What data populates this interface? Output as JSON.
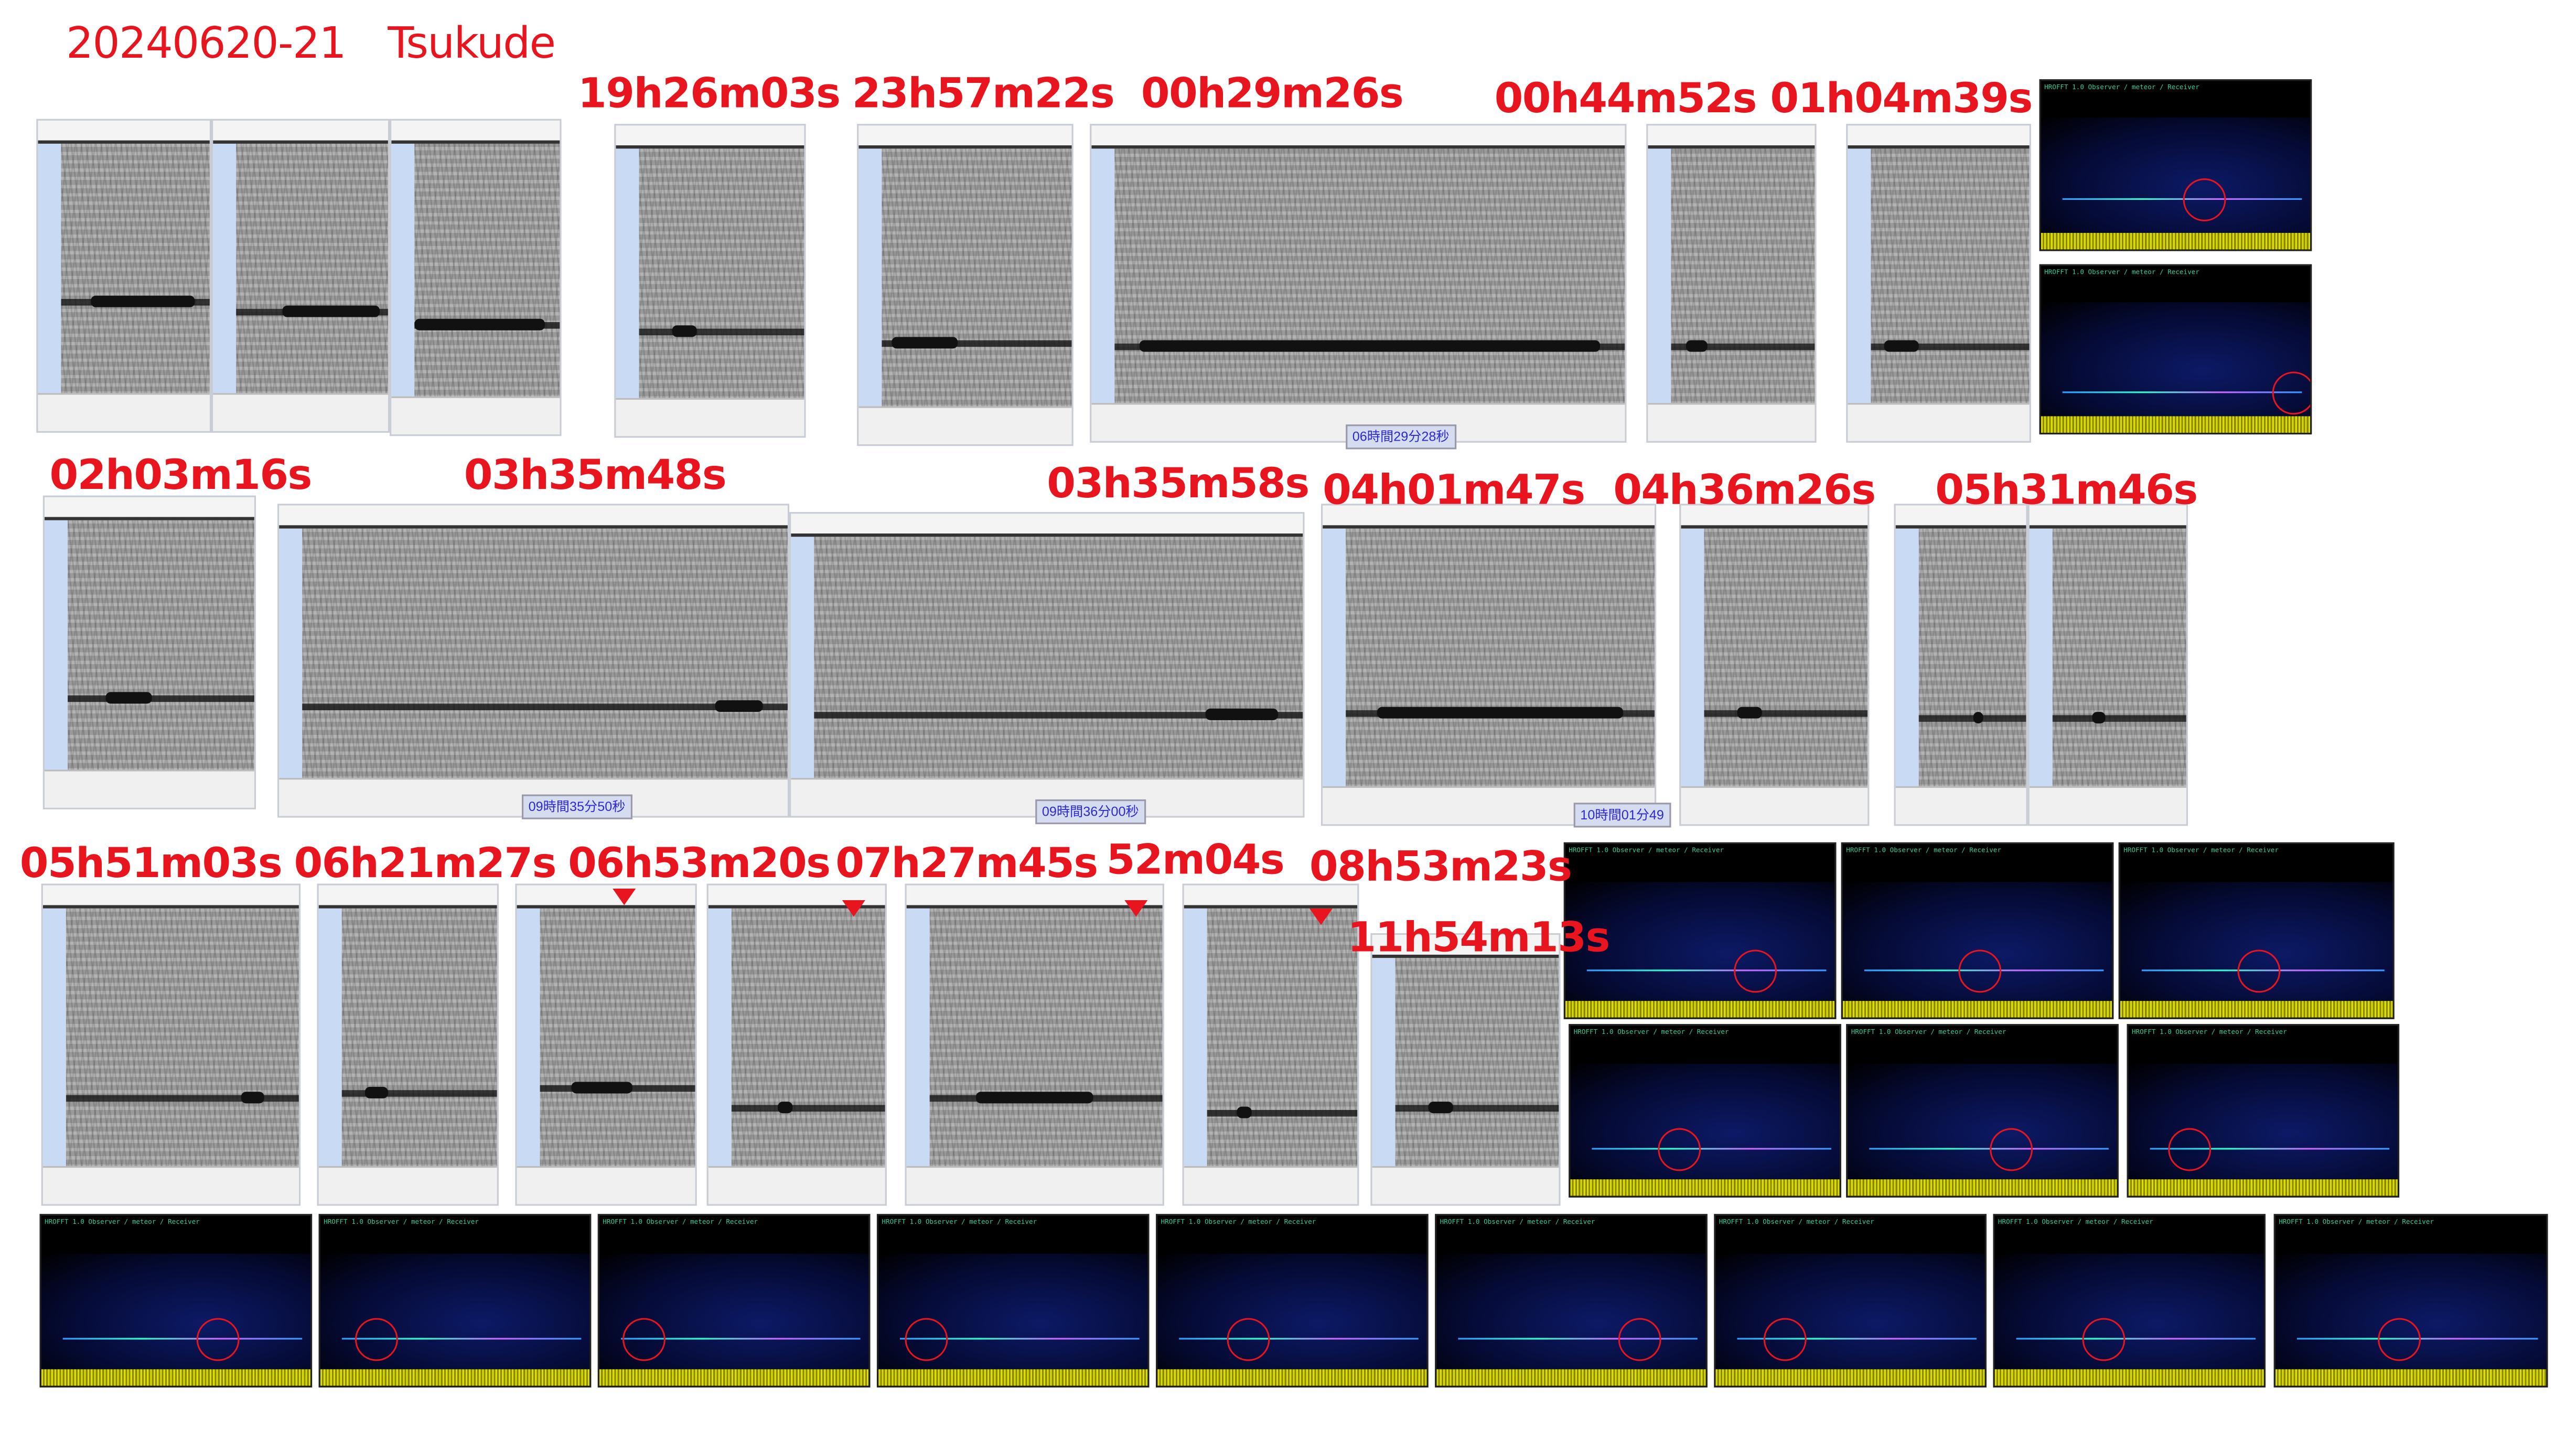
{
  "title": "20240620-21　Tsukude",
  "labels": [
    "19h26m03s",
    "23h57m22s",
    "00h29m26s",
    "00h44m52s",
    "01h04m39s",
    "02h03m16s",
    "03h35m48s",
    "03h35m58s",
    "04h01m47s",
    "04h36m26s",
    "05h31m46s",
    "05h51m03s",
    "06h21m27s",
    "06h53m20s",
    "07h27m45s",
    "52m04s",
    "08h53m23s",
    "11h54m13s"
  ],
  "readouts": [
    "06時間29分28秒",
    "09時間35分50秒",
    "09時間36分00秒",
    "10時間01分49"
  ],
  "hrofft_header": "HROFFT 1.0  Observer / meteor / Receiver",
  "colors": {
    "label": "#e8141e",
    "spectrogram": "#9a9a9a",
    "hrofft_bg": "#000000"
  }
}
